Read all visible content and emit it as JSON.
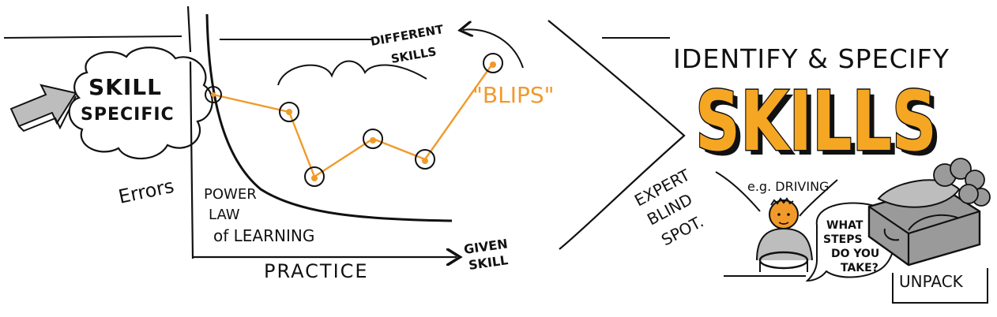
{
  "left": {
    "cloud_line1": "SKILL",
    "cloud_line2": "SPECIFIC",
    "y_axis_label": "Errors",
    "x_axis_label": "PRACTICE",
    "axis_end_line1": "GIVEN",
    "axis_end_line2": "SKILL",
    "curve_label_line1": "POWER",
    "curve_label_line2": "LAW",
    "curve_label_line3": "of LEARNING",
    "different_line1": "DIFFERENT",
    "different_line2": "SKILLS",
    "blips_label": "\"BLIPS\""
  },
  "right": {
    "heading": "IDENTIFY & SPECIFY",
    "big_title": "SKILLS",
    "expert_line1": "EXPERT",
    "expert_line2": "BLIND",
    "expert_line3": "SPOT.",
    "example": "e.g. DRIVING",
    "bubble_line1": "WHAT",
    "bubble_line2": "STEPS",
    "bubble_line3": "DO YOU",
    "bubble_line4": "TAKE?",
    "unpack": "UNPACK"
  },
  "colors": {
    "ink": "#111111",
    "accent_orange": "#f19a2b",
    "title_fill": "#f5a623",
    "shadow_gray": "#9a9a9a"
  }
}
